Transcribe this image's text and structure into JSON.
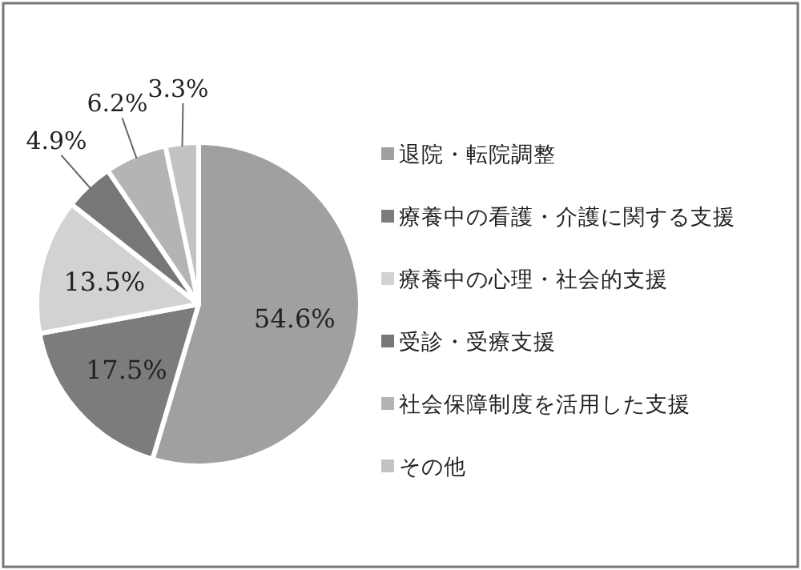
{
  "chart_data": {
    "type": "pie",
    "categories": [
      "退院・転院調整",
      "療養中の看護・介護に関する支援",
      "療養中の心理・社会的支援",
      "受診・受療支援",
      "社会保障制度を活用した支援",
      "その他"
    ],
    "values": [
      54.6,
      17.5,
      13.5,
      4.9,
      6.2,
      3.3
    ],
    "colors": [
      "#a0a0a0",
      "#7c7c7c",
      "#d2d2d2",
      "#777777",
      "#b4b4b4",
      "#c2c2c2"
    ],
    "value_labels": [
      "54.6%",
      "17.5%",
      "13.5%",
      "4.9%",
      "6.2%",
      "3.3%"
    ],
    "legend": "right"
  }
}
